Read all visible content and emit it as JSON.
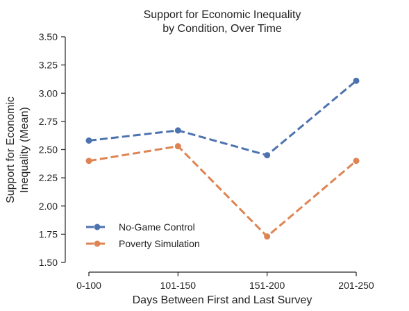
{
  "chart_data": {
    "type": "line",
    "title_lines": [
      "Support for Economic Inequality",
      "by Condition, Over Time"
    ],
    "xlabel": "Days Between First and Last Survey",
    "ylabel_lines": [
      "Support for Economic",
      "Inequality (Mean)"
    ],
    "categories": [
      "0-100",
      "101-150",
      "151-200",
      "201-250"
    ],
    "ylim": [
      1.5,
      3.5
    ],
    "yticks": [
      "1.50",
      "1.75",
      "2.00",
      "2.25",
      "2.50",
      "2.75",
      "3.00",
      "3.25",
      "3.50"
    ],
    "grid": false,
    "legend_position": "lower-left",
    "series": [
      {
        "name": "No-Game Control",
        "color": "#4c72b0",
        "linestyle": "dashed",
        "marker": "circle",
        "values": [
          2.58,
          2.67,
          2.45,
          3.11
        ]
      },
      {
        "name": "Poverty Simulation",
        "color": "#dd8452",
        "linestyle": "dashed",
        "marker": "circle",
        "values": [
          2.4,
          2.53,
          1.73,
          2.4
        ]
      }
    ]
  }
}
